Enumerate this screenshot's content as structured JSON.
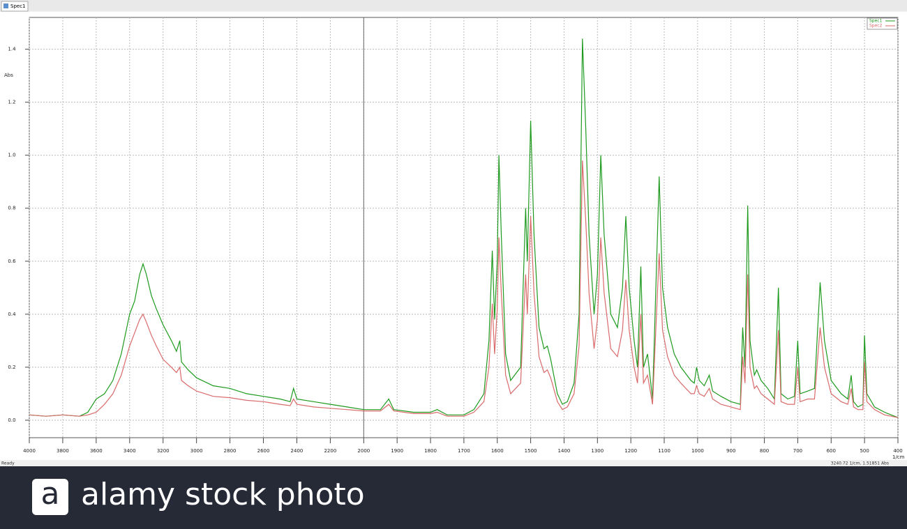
{
  "tab": "Spec1",
  "status": "Ready",
  "cursor_readout": "3240.72 1/cm, 1.51851 Abs",
  "footer": {
    "logo": "a",
    "text": "alamy stock photo"
  },
  "chart_data": {
    "type": "line",
    "y_label": "Abs",
    "x_label": "1/cm",
    "xlim": [
      4000,
      400
    ],
    "x_break": 2000,
    "ylim": [
      -0.066,
      1.52
    ],
    "xticks": [
      4000,
      3800,
      3600,
      3400,
      3200,
      3000,
      2800,
      2600,
      2400,
      2200,
      2000,
      1900,
      1800,
      1700,
      1600,
      1500,
      1400,
      1300,
      1200,
      1100,
      1000,
      900,
      800,
      700,
      600,
      500,
      400
    ],
    "yticks": [
      {
        "value": 0,
        "label": "0.0"
      },
      {
        "value": 0.2,
        "label": "0.2"
      },
      {
        "value": 0.4,
        "label": "0.4"
      },
      {
        "value": 0.6,
        "label": "0.6"
      },
      {
        "value": 0.8,
        "label": "0.8"
      },
      {
        "value": 1.0,
        "label": "1.0"
      },
      {
        "value": 1.2,
        "label": "1.2"
      },
      {
        "value": 1.4,
        "label": "1.4"
      }
    ],
    "grid": true,
    "legend": "top-right",
    "x": [
      4000,
      3900,
      3800,
      3700,
      3650,
      3600,
      3550,
      3500,
      3450,
      3400,
      3370,
      3340,
      3320,
      3300,
      3270,
      3240,
      3200,
      3150,
      3120,
      3100,
      3090,
      3050,
      3000,
      2900,
      2800,
      2700,
      2600,
      2500,
      2440,
      2420,
      2400,
      2300,
      2200,
      2100,
      2000,
      1950,
      1925,
      1910,
      1850,
      1800,
      1780,
      1750,
      1700,
      1670,
      1640,
      1625,
      1615,
      1608,
      1600,
      1595,
      1588,
      1575,
      1560,
      1530,
      1515,
      1510,
      1500,
      1490,
      1475,
      1460,
      1450,
      1440,
      1420,
      1405,
      1390,
      1370,
      1355,
      1345,
      1335,
      1325,
      1310,
      1300,
      1290,
      1280,
      1260,
      1240,
      1225,
      1215,
      1205,
      1190,
      1180,
      1170,
      1162,
      1150,
      1135,
      1115,
      1105,
      1090,
      1070,
      1050,
      1020,
      1010,
      1003,
      995,
      980,
      965,
      955,
      930,
      900,
      872,
      865,
      858,
      850,
      843,
      830,
      823,
      810,
      790,
      770,
      758,
      750,
      730,
      710,
      700,
      693,
      670,
      650,
      633,
      620,
      600,
      570,
      550,
      540,
      533,
      520,
      505,
      500,
      493,
      470,
      440,
      420,
      400
    ],
    "series": [
      {
        "name": "Spec1",
        "color": "#1e9a1e",
        "values": [
          0.02,
          0.015,
          0.02,
          0.015,
          0.03,
          0.08,
          0.1,
          0.15,
          0.25,
          0.4,
          0.45,
          0.55,
          0.59,
          0.55,
          0.47,
          0.42,
          0.36,
          0.3,
          0.26,
          0.3,
          0.22,
          0.19,
          0.16,
          0.13,
          0.12,
          0.1,
          0.09,
          0.08,
          0.07,
          0.12,
          0.08,
          0.07,
          0.06,
          0.05,
          0.04,
          0.04,
          0.08,
          0.04,
          0.03,
          0.03,
          0.04,
          0.02,
          0.02,
          0.04,
          0.1,
          0.3,
          0.64,
          0.38,
          0.6,
          1.0,
          0.7,
          0.25,
          0.15,
          0.2,
          0.8,
          0.6,
          1.13,
          0.7,
          0.35,
          0.27,
          0.28,
          0.23,
          0.1,
          0.06,
          0.07,
          0.14,
          0.4,
          1.44,
          1.1,
          0.7,
          0.4,
          0.55,
          1.0,
          0.7,
          0.4,
          0.35,
          0.5,
          0.77,
          0.5,
          0.3,
          0.2,
          0.58,
          0.2,
          0.25,
          0.08,
          0.92,
          0.5,
          0.35,
          0.25,
          0.2,
          0.15,
          0.14,
          0.2,
          0.15,
          0.13,
          0.17,
          0.11,
          0.09,
          0.07,
          0.06,
          0.35,
          0.2,
          0.81,
          0.3,
          0.17,
          0.19,
          0.15,
          0.12,
          0.08,
          0.5,
          0.1,
          0.08,
          0.09,
          0.3,
          0.1,
          0.11,
          0.12,
          0.52,
          0.3,
          0.15,
          0.1,
          0.08,
          0.17,
          0.07,
          0.05,
          0.06,
          0.32,
          0.1,
          0.05,
          0.03,
          0.02,
          0.01
        ]
      },
      {
        "name": "Spec2",
        "color": "#d96a6a",
        "values": [
          0.02,
          0.015,
          0.02,
          0.015,
          0.02,
          0.03,
          0.06,
          0.1,
          0.17,
          0.28,
          0.33,
          0.38,
          0.4,
          0.37,
          0.32,
          0.28,
          0.23,
          0.2,
          0.18,
          0.2,
          0.15,
          0.13,
          0.11,
          0.09,
          0.085,
          0.075,
          0.07,
          0.06,
          0.055,
          0.08,
          0.06,
          0.05,
          0.045,
          0.04,
          0.035,
          0.035,
          0.06,
          0.035,
          0.025,
          0.025,
          0.03,
          0.015,
          0.015,
          0.03,
          0.07,
          0.2,
          0.44,
          0.25,
          0.42,
          0.69,
          0.48,
          0.17,
          0.1,
          0.14,
          0.55,
          0.4,
          0.77,
          0.48,
          0.24,
          0.18,
          0.19,
          0.16,
          0.07,
          0.04,
          0.05,
          0.1,
          0.28,
          0.98,
          0.75,
          0.48,
          0.27,
          0.38,
          0.69,
          0.48,
          0.27,
          0.24,
          0.34,
          0.53,
          0.34,
          0.2,
          0.14,
          0.4,
          0.14,
          0.17,
          0.06,
          0.63,
          0.34,
          0.24,
          0.17,
          0.14,
          0.1,
          0.1,
          0.13,
          0.1,
          0.09,
          0.12,
          0.08,
          0.06,
          0.05,
          0.04,
          0.24,
          0.14,
          0.55,
          0.2,
          0.12,
          0.13,
          0.1,
          0.08,
          0.06,
          0.34,
          0.07,
          0.06,
          0.06,
          0.2,
          0.07,
          0.08,
          0.08,
          0.35,
          0.2,
          0.1,
          0.07,
          0.06,
          0.12,
          0.05,
          0.04,
          0.04,
          0.22,
          0.07,
          0.04,
          0.02,
          0.015,
          0.01
        ]
      }
    ]
  }
}
